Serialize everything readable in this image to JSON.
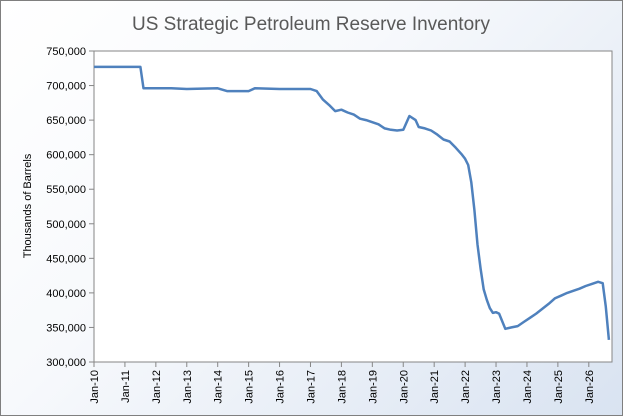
{
  "chart_data": {
    "type": "line",
    "title": "US Strategic Petroleum Reserve Inventory",
    "xlabel": "",
    "ylabel": "Thousands of Barrels",
    "ylim": [
      300000,
      750000
    ],
    "y_ticks": [
      "300,000",
      "350,000",
      "400,000",
      "450,000",
      "500,000",
      "550,000",
      "600,000",
      "650,000",
      "700,000",
      "750,000"
    ],
    "x_ticks": [
      "Jan-10",
      "Jan-11",
      "Jan-12",
      "Jan-13",
      "Jan-14",
      "Jan-15",
      "Jan-16",
      "Jan-17",
      "Jan-18",
      "Jan-19",
      "Jan-20",
      "Jan-21",
      "Jan-22",
      "Jan-23",
      "Jan-24",
      "Jan-25",
      "Jan-26"
    ],
    "grid": false,
    "legend": "none",
    "line_color": "#4f81bd",
    "series": [
      {
        "x": [
          2010.0,
          2011.5,
          2011.6,
          2012.5,
          2013.0,
          2014.0,
          2014.3,
          2015.0,
          2015.2,
          2016.0,
          2017.0,
          2017.2,
          2017.4,
          2017.6,
          2017.8,
          2018.0,
          2018.2,
          2018.4,
          2018.6,
          2018.8,
          2019.0,
          2019.2,
          2019.4,
          2019.6,
          2019.8,
          2020.0,
          2020.2,
          2020.4,
          2020.5,
          2020.7,
          2020.9,
          2021.1,
          2021.3,
          2021.5,
          2021.7,
          2021.9,
          2022.0,
          2022.1,
          2022.2,
          2022.3,
          2022.4,
          2022.5,
          2022.6,
          2022.7,
          2022.8,
          2022.9,
          2023.0,
          2023.1,
          2023.3,
          2023.5,
          2023.7,
          2023.9,
          2024.1,
          2024.3,
          2024.5,
          2024.7,
          2024.9,
          2025.1,
          2025.3,
          2025.5,
          2025.7,
          2025.9,
          2026.1,
          2026.3,
          2026.45,
          2026.55,
          2026.65
        ],
        "y": [
          727000,
          727000,
          696000,
          696000,
          695000,
          696000,
          692000,
          692000,
          696000,
          695000,
          695000,
          692000,
          680000,
          672000,
          663000,
          665000,
          661000,
          658000,
          652000,
          650000,
          647000,
          644000,
          638000,
          636000,
          635000,
          636000,
          656000,
          650000,
          640000,
          638000,
          635000,
          629000,
          622000,
          619000,
          610000,
          600000,
          594000,
          585000,
          560000,
          520000,
          470000,
          435000,
          405000,
          390000,
          378000,
          371000,
          372000,
          370000,
          348000,
          350000,
          352000,
          358000,
          364000,
          370000,
          377000,
          384000,
          392000,
          396000,
          400000,
          403000,
          406000,
          410000,
          413000,
          416000,
          414000,
          380000,
          332000
        ]
      }
    ]
  }
}
